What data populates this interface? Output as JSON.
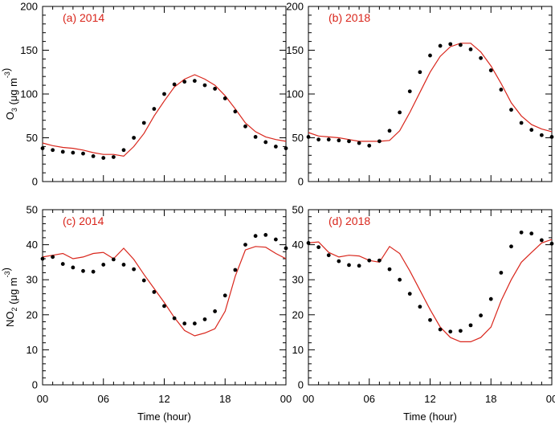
{
  "chart_data": [
    {
      "type": "scatter",
      "panel_label": "(a) 2014",
      "ylabel_main": "O",
      "ylabel_sub": "3",
      "ylabel_unit": " (μg m",
      "ylabel_sup": "-3",
      "ylabel_close": ")",
      "xlim": [
        0,
        24
      ],
      "ylim": [
        0,
        200
      ],
      "yticks": [
        0,
        50,
        100,
        150,
        200
      ],
      "xticks": [
        "00",
        "06",
        "12",
        "18",
        "00"
      ],
      "xtick_values": [
        0,
        6,
        12,
        18,
        24
      ],
      "xlabel": "",
      "series": [
        {
          "kind": "observed",
          "color": "#000000",
          "x": [
            0,
            1,
            2,
            3,
            4,
            5,
            6,
            7,
            8,
            9,
            10,
            11,
            12,
            13,
            14,
            15,
            16,
            17,
            18,
            19,
            20,
            21,
            22,
            23,
            24
          ],
          "y": [
            38,
            36,
            34,
            33,
            32,
            29,
            27,
            28,
            36,
            50,
            67,
            83,
            100,
            111,
            114,
            115,
            110,
            106,
            95,
            80,
            63,
            51,
            45,
            40,
            38
          ]
        },
        {
          "kind": "modeled",
          "color": "#d9261c",
          "x": [
            0,
            1,
            2,
            3,
            4,
            5,
            6,
            7,
            8,
            9,
            10,
            11,
            12,
            13,
            14,
            15,
            16,
            17,
            18,
            19,
            20,
            21,
            22,
            23,
            24
          ],
          "y": [
            44,
            41,
            39,
            38,
            36,
            33,
            31,
            31,
            29,
            40,
            55,
            75,
            92,
            108,
            117,
            122,
            117,
            110,
            98,
            83,
            67,
            57,
            51,
            48,
            46
          ]
        }
      ]
    },
    {
      "type": "scatter",
      "panel_label": "(b) 2018",
      "xlim": [
        0,
        24
      ],
      "ylim": [
        0,
        200
      ],
      "yticks": [
        0,
        50,
        100,
        150,
        200
      ],
      "xticks": [
        "00",
        "06",
        "12",
        "18",
        "00"
      ],
      "xtick_values": [
        0,
        6,
        12,
        18,
        24
      ],
      "series": [
        {
          "kind": "observed",
          "color": "#000000",
          "x": [
            0,
            1,
            2,
            3,
            4,
            5,
            6,
            7,
            8,
            9,
            10,
            11,
            12,
            13,
            14,
            15,
            16,
            17,
            18,
            19,
            20,
            21,
            22,
            23,
            24
          ],
          "y": [
            51,
            48,
            48,
            47,
            46,
            44,
            41,
            46,
            58,
            79,
            103,
            125,
            144,
            155,
            157,
            156,
            151,
            141,
            127,
            105,
            82,
            67,
            59,
            53,
            51
          ]
        },
        {
          "kind": "modeled",
          "color": "#d9261c",
          "x": [
            0,
            1,
            2,
            3,
            4,
            5,
            6,
            7,
            8,
            9,
            10,
            11,
            12,
            13,
            14,
            15,
            16,
            17,
            18,
            19,
            20,
            21,
            22,
            23,
            24
          ],
          "y": [
            56,
            52,
            51,
            50,
            48,
            46,
            46,
            46,
            47,
            58,
            79,
            102,
            125,
            143,
            154,
            158,
            158,
            148,
            132,
            112,
            90,
            75,
            65,
            60,
            57
          ]
        }
      ]
    },
    {
      "type": "scatter",
      "panel_label": "(c) 2014",
      "ylabel_main": "NO",
      "ylabel_sub": "2",
      "ylabel_unit": " (μg m",
      "ylabel_sup": "-3",
      "ylabel_close": ")",
      "xlim": [
        0,
        24
      ],
      "ylim": [
        0,
        50
      ],
      "yticks": [
        0,
        10,
        20,
        30,
        40,
        50
      ],
      "xticks": [
        "00",
        "06",
        "12",
        "18",
        "00"
      ],
      "xtick_values": [
        0,
        6,
        12,
        18,
        24
      ],
      "xlabel": "Time (hour)",
      "series": [
        {
          "kind": "observed",
          "color": "#000000",
          "x": [
            0,
            1,
            2,
            3,
            4,
            5,
            6,
            7,
            8,
            9,
            10,
            11,
            12,
            13,
            14,
            15,
            16,
            17,
            18,
            19,
            20,
            21,
            22,
            23,
            24
          ],
          "y": [
            36,
            36.5,
            34.5,
            33.5,
            32.5,
            32.3,
            34.3,
            35.8,
            34.3,
            33.0,
            29.8,
            26.5,
            22.5,
            19.0,
            17.5,
            17.5,
            18.7,
            21.0,
            25.5,
            32.8,
            40.0,
            42.5,
            42.8,
            41.5,
            39.0
          ]
        },
        {
          "kind": "modeled",
          "color": "#d9261c",
          "x": [
            0,
            1,
            2,
            3,
            4,
            5,
            6,
            7,
            8,
            9,
            10,
            11,
            12,
            13,
            14,
            15,
            16,
            17,
            18,
            19,
            20,
            21,
            22,
            23,
            24
          ],
          "y": [
            36.5,
            37.0,
            37.5,
            36.0,
            36.5,
            37.5,
            37.8,
            36.0,
            39.0,
            35.8,
            31.5,
            27.5,
            23.5,
            19.2,
            15.5,
            14.0,
            14.8,
            16.0,
            21.0,
            31.0,
            38.5,
            39.5,
            39.3,
            37.5,
            36.0
          ]
        }
      ]
    },
    {
      "type": "scatter",
      "panel_label": "(d) 2018",
      "xlim": [
        0,
        24
      ],
      "ylim": [
        0,
        50
      ],
      "yticks": [
        0,
        10,
        20,
        30,
        40,
        50
      ],
      "xticks": [
        "00",
        "06",
        "12",
        "18",
        "00"
      ],
      "xtick_values": [
        0,
        6,
        12,
        18,
        24
      ],
      "xlabel": "Time (hour)",
      "series": [
        {
          "kind": "observed",
          "color": "#000000",
          "x": [
            0,
            1,
            2,
            3,
            4,
            5,
            6,
            7,
            8,
            9,
            10,
            11,
            12,
            13,
            14,
            15,
            16,
            17,
            18,
            19,
            20,
            21,
            22,
            23,
            24
          ],
          "y": [
            40.5,
            39.3,
            37.0,
            35.3,
            34.2,
            34.0,
            35.5,
            35.5,
            33.0,
            30.0,
            26.0,
            22.3,
            18.5,
            15.8,
            15.2,
            15.4,
            17.0,
            19.8,
            24.5,
            32.0,
            39.5,
            43.5,
            43.2,
            41.3,
            40.3
          ]
        },
        {
          "kind": "modeled",
          "color": "#d9261c",
          "x": [
            0,
            1,
            2,
            3,
            4,
            5,
            6,
            7,
            8,
            9,
            10,
            11,
            12,
            13,
            14,
            15,
            16,
            17,
            18,
            19,
            20,
            21,
            22,
            23,
            24
          ],
          "y": [
            40.5,
            40.8,
            37.8,
            36.5,
            37.0,
            36.8,
            35.5,
            35.0,
            39.5,
            37.5,
            32.5,
            27.0,
            21.5,
            16.5,
            13.5,
            12.3,
            12.3,
            13.5,
            16.5,
            24.0,
            30.0,
            35.0,
            37.8,
            40.5,
            41.5
          ]
        }
      ]
    }
  ]
}
